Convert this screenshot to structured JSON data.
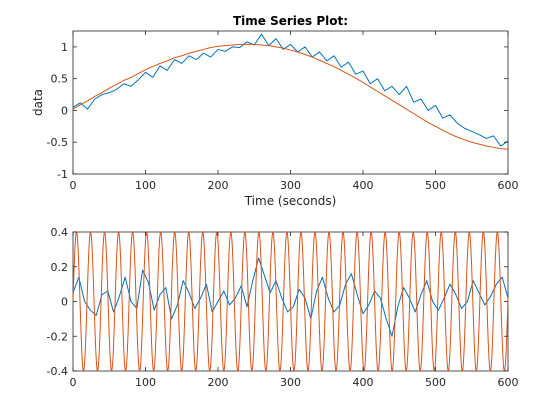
{
  "colors": {
    "blue": "#0072BD",
    "orange": "#D95319"
  },
  "chart_data": [
    {
      "type": "line",
      "title": "Time Series Plot:",
      "xlabel": "Time (seconds)",
      "ylabel": "data",
      "xlim": [
        0,
        600
      ],
      "ylim": [
        -1,
        1.25
      ],
      "x_ticks": [
        "0",
        "100",
        "200",
        "300",
        "400",
        "500",
        "600"
      ],
      "y_ticks": [
        "-1",
        "-0.5",
        "0",
        "0.5",
        "1"
      ],
      "grid": false,
      "series": [
        {
          "color": "#0072BD",
          "x": [
            0,
            10,
            20,
            30,
            40,
            50,
            60,
            70,
            80,
            90,
            100,
            110,
            120,
            130,
            140,
            150,
            160,
            170,
            180,
            190,
            200,
            210,
            220,
            230,
            240,
            250,
            260,
            270,
            280,
            290,
            300,
            310,
            320,
            330,
            340,
            350,
            360,
            370,
            380,
            390,
            400,
            410,
            420,
            430,
            440,
            450,
            460,
            470,
            480,
            490,
            500,
            510,
            520,
            530,
            540,
            550,
            560,
            570,
            580,
            590,
            600
          ],
          "y": [
            0.05,
            0.12,
            0.02,
            0.18,
            0.25,
            0.28,
            0.33,
            0.42,
            0.38,
            0.48,
            0.6,
            0.52,
            0.7,
            0.63,
            0.8,
            0.74,
            0.86,
            0.8,
            0.9,
            0.84,
            0.96,
            0.93,
            1.0,
            0.99,
            1.08,
            1.03,
            1.2,
            1.02,
            1.13,
            0.96,
            1.04,
            0.92,
            1.0,
            0.84,
            0.92,
            0.78,
            0.86,
            0.68,
            0.76,
            0.57,
            0.62,
            0.42,
            0.5,
            0.31,
            0.38,
            0.25,
            0.38,
            0.13,
            0.18,
            0.0,
            0.08,
            -0.12,
            -0.07,
            -0.2,
            -0.28,
            -0.33,
            -0.38,
            -0.44,
            -0.4,
            -0.56,
            -0.48
          ]
        },
        {
          "color": "#D95319",
          "x": [
            0,
            10,
            20,
            30,
            40,
            50,
            60,
            70,
            80,
            90,
            100,
            110,
            120,
            130,
            140,
            150,
            160,
            170,
            180,
            190,
            200,
            210,
            220,
            230,
            240,
            250,
            260,
            270,
            280,
            290,
            300,
            310,
            320,
            330,
            340,
            350,
            360,
            370,
            380,
            390,
            400,
            410,
            420,
            430,
            440,
            450,
            460,
            470,
            480,
            490,
            500,
            510,
            520,
            530,
            540,
            550,
            560,
            570,
            580,
            590,
            600
          ],
          "y": [
            0.02,
            0.09,
            0.15,
            0.22,
            0.28,
            0.35,
            0.41,
            0.47,
            0.52,
            0.58,
            0.64,
            0.69,
            0.74,
            0.78,
            0.83,
            0.86,
            0.9,
            0.93,
            0.96,
            0.99,
            1.01,
            1.02,
            1.03,
            1.04,
            1.04,
            1.04,
            1.03,
            1.02,
            1.0,
            0.98,
            0.95,
            0.92,
            0.88,
            0.84,
            0.79,
            0.74,
            0.69,
            0.63,
            0.57,
            0.51,
            0.44,
            0.37,
            0.3,
            0.23,
            0.16,
            0.09,
            0.02,
            -0.05,
            -0.12,
            -0.19,
            -0.25,
            -0.31,
            -0.37,
            -0.42,
            -0.46,
            -0.5,
            -0.53,
            -0.56,
            -0.58,
            -0.6,
            -0.61
          ]
        }
      ]
    },
    {
      "type": "line",
      "title": "",
      "xlabel": "",
      "ylabel": "",
      "xlim": [
        0,
        600
      ],
      "ylim": [
        -0.4,
        0.4
      ],
      "x_ticks": [
        "0",
        "100",
        "200",
        "300",
        "400",
        "500",
        "600"
      ],
      "y_ticks": [
        "-0.4",
        "-0.2",
        "0",
        "0.2",
        "0.4"
      ],
      "grid": false,
      "series": [
        {
          "color": "#0072BD",
          "x": [
            0,
            8,
            16,
            24,
            32,
            40,
            48,
            56,
            64,
            72,
            80,
            88,
            96,
            104,
            112,
            120,
            128,
            136,
            144,
            152,
            160,
            168,
            176,
            184,
            192,
            200,
            208,
            216,
            224,
            232,
            240,
            248,
            256,
            264,
            272,
            280,
            288,
            296,
            304,
            312,
            320,
            328,
            336,
            344,
            352,
            360,
            368,
            376,
            384,
            392,
            400,
            408,
            416,
            424,
            432,
            440,
            448,
            456,
            464,
            472,
            480,
            488,
            496,
            504,
            512,
            520,
            528,
            536,
            544,
            552,
            560,
            568,
            576,
            584,
            592,
            600
          ],
          "y": [
            0.05,
            0.14,
            0.0,
            -0.05,
            -0.08,
            0.04,
            0.06,
            -0.06,
            0.03,
            0.14,
            0.0,
            -0.04,
            0.18,
            0.11,
            -0.05,
            0.04,
            0.08,
            -0.1,
            -0.02,
            0.12,
            0.05,
            -0.04,
            0.02,
            0.1,
            -0.06,
            0.0,
            0.06,
            -0.02,
            0.02,
            0.09,
            -0.03,
            0.12,
            0.25,
            0.15,
            0.05,
            0.12,
            0.02,
            -0.06,
            -0.03,
            0.07,
            0.02,
            -0.1,
            0.06,
            0.14,
            0.02,
            -0.06,
            -0.02,
            0.1,
            0.16,
            0.04,
            -0.07,
            -0.02,
            0.06,
            0.02,
            -0.1,
            -0.2,
            -0.03,
            0.08,
            0.02,
            -0.06,
            0.04,
            0.12,
            0.0,
            -0.05,
            0.02,
            0.1,
            0.04,
            -0.04,
            0.0,
            0.12,
            0.05,
            -0.02,
            0.03,
            0.1,
            0.14,
            0.02
          ]
        },
        {
          "color": "#D95319",
          "function": "sine",
          "amplitude": 0.4,
          "period": 19.35,
          "x_range": [
            0,
            600
          ]
        }
      ]
    }
  ]
}
